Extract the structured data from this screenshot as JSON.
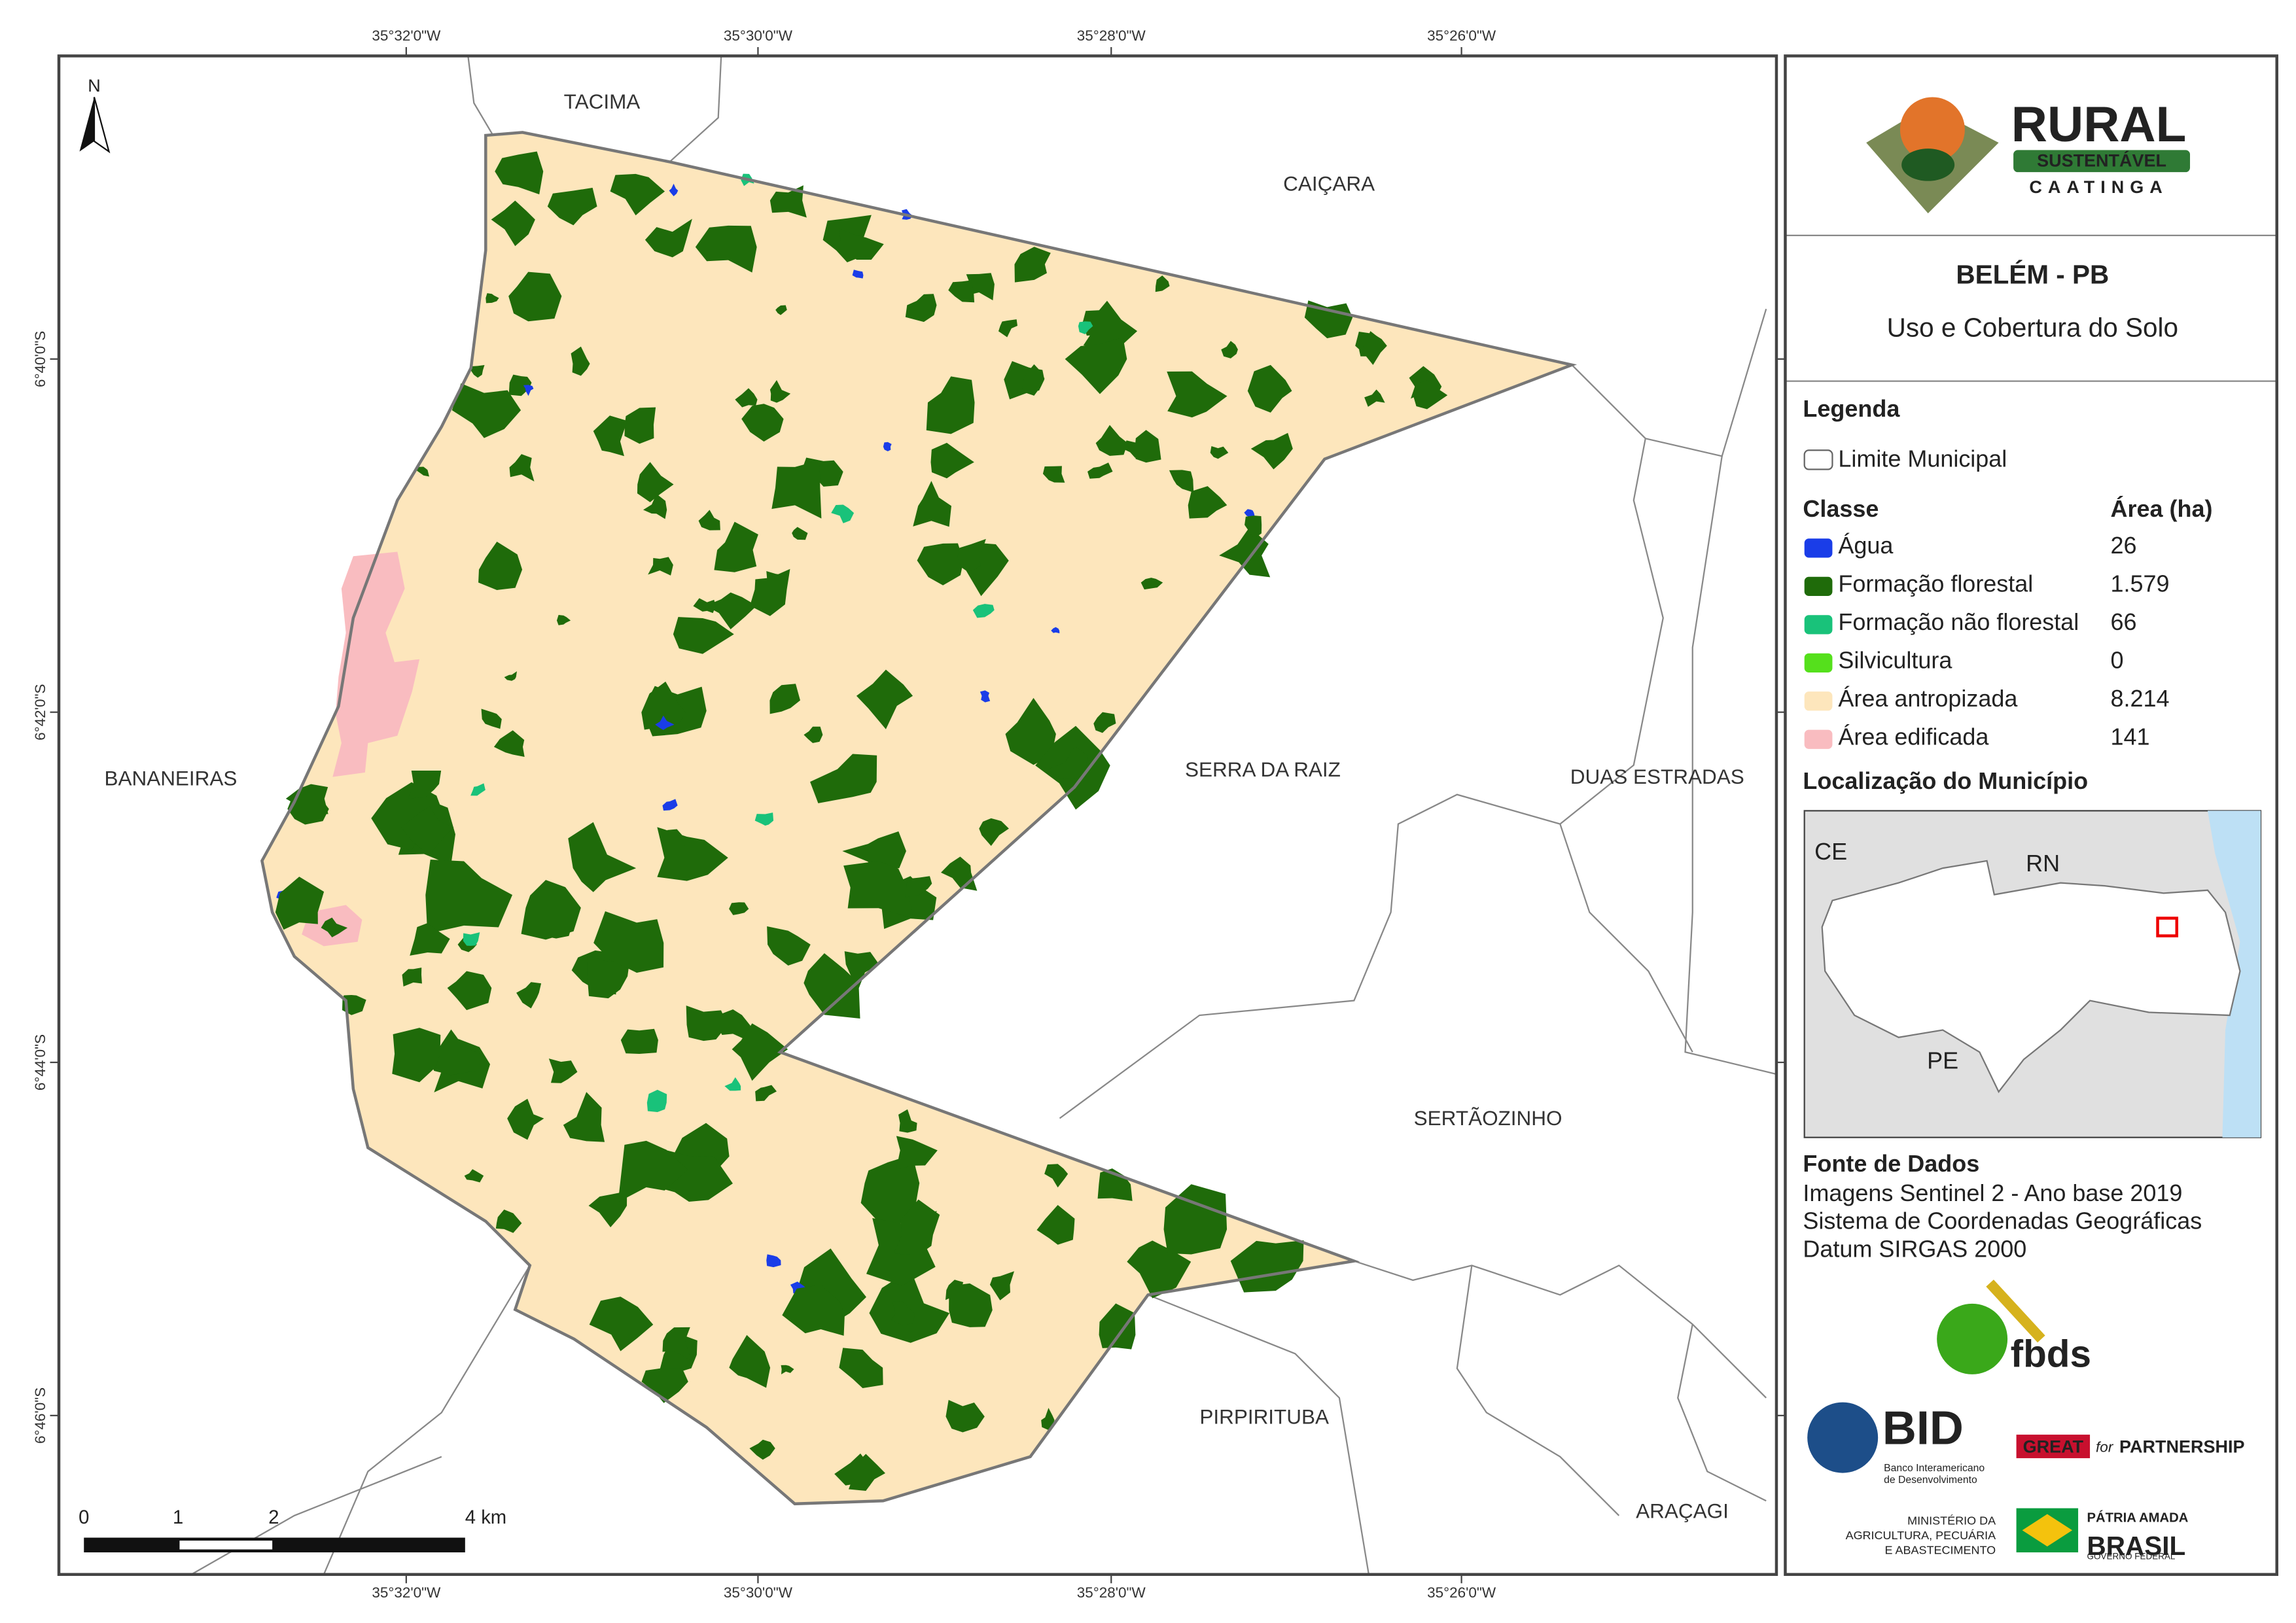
{
  "map": {
    "north": "N",
    "neighbors": [
      "TACIMA",
      "CAIÇARA",
      "BANANEIRAS",
      "SERRA DA RAIZ",
      "DUAS ESTRADAS",
      "SERTÃOZINHO",
      "PIRPIRITUBA",
      "ARAÇAGI"
    ],
    "x_coords": [
      "35°32'0\"W",
      "35°30'0\"W",
      "35°28'0\"W",
      "35°26'0\"W"
    ],
    "y_coords": [
      "6°40'0\"S",
      "6°42'0\"S",
      "6°44'0\"S",
      "6°46'0\"S"
    ],
    "scale_bar": [
      "0",
      "1",
      "2",
      "4 km"
    ]
  },
  "panel": {
    "logo": {
      "title": "RURAL",
      "band": "SUSTENTÁVEL",
      "subtitle": "CAATINGA"
    },
    "title": "BELÉM - PB",
    "subtitle": "Uso e Cobertura do Solo",
    "legend": {
      "heading": "Legenda",
      "boundary": "Limite Municipal",
      "class_header": "Classe",
      "area_header": "Área (ha)",
      "rows": [
        {
          "name": "Água",
          "area": "26",
          "color": "#1a3de8"
        },
        {
          "name": "Formação florestal",
          "area": "1.579",
          "color": "#1f6b0a"
        },
        {
          "name": "Formação não florestal",
          "area": "66",
          "color": "#19c27a"
        },
        {
          "name": "Silvicultura",
          "area": "0",
          "color": "#55e01c"
        },
        {
          "name": "Área antropizada",
          "area": "8.214",
          "color": "#fde6bc"
        },
        {
          "name": "Área edificada",
          "area": "141",
          "color": "#f9bcc0"
        }
      ]
    },
    "location": {
      "heading": "Localização do Município",
      "labels": [
        "CE",
        "RN",
        "PE"
      ]
    },
    "sources": {
      "heading": "Fonte de Dados",
      "lines": [
        "Imagens Sentinel 2 - Ano base 2019",
        "Sistema de Coordenadas Geográficas",
        "Datum SIRGAS 2000"
      ]
    },
    "logos": {
      "fbds": "fbds",
      "bid": "BID",
      "bid_name": [
        "Banco Interamericano",
        "de Desenvolvimento"
      ],
      "great": "GREAT",
      "for": "for",
      "partnership": "PARTNERSHIP",
      "ministry": [
        "MINISTÉRIO DA",
        "AGRICULTURA, PECUÁRIA",
        "E ABASTECIMENTO"
      ],
      "brasil": [
        "PÁTRIA AMADA",
        "BRASIL",
        "GOVERNO FEDERAL"
      ]
    }
  }
}
